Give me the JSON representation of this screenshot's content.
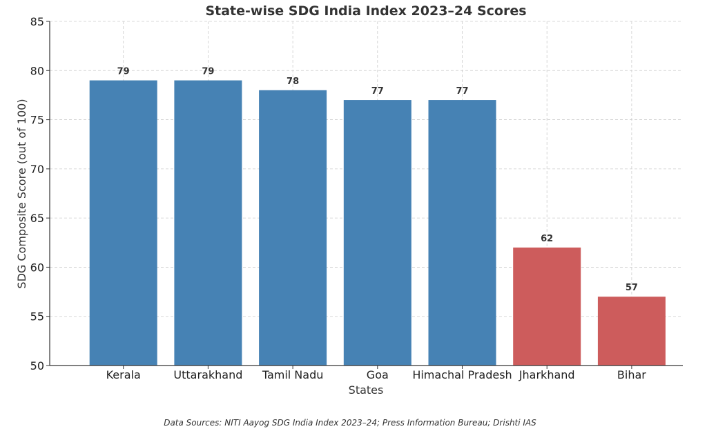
{
  "chart_data": {
    "type": "bar",
    "title": "State-wise SDG India Index 2023–24 Scores",
    "xlabel": "States",
    "ylabel": "SDG Composite Score (out of 100)",
    "categories": [
      "Kerala",
      "Uttarakhand",
      "Tamil Nadu",
      "Goa",
      "Himachal Pradesh",
      "Jharkhand",
      "Bihar"
    ],
    "values": [
      79,
      79,
      78,
      77,
      77,
      62,
      57
    ],
    "bar_colors": [
      "#4682b4",
      "#4682b4",
      "#4682b4",
      "#4682b4",
      "#4682b4",
      "#cd5c5c",
      "#cd5c5c"
    ],
    "ylim": [
      50,
      85
    ],
    "yticks": [
      50,
      55,
      60,
      65,
      70,
      75,
      80,
      85
    ],
    "grid": true,
    "data_labels": true
  },
  "source_note": "Data Sources: NITI Aayog SDG India Index 2023–24; Press Information Bureau; Drishti IAS"
}
